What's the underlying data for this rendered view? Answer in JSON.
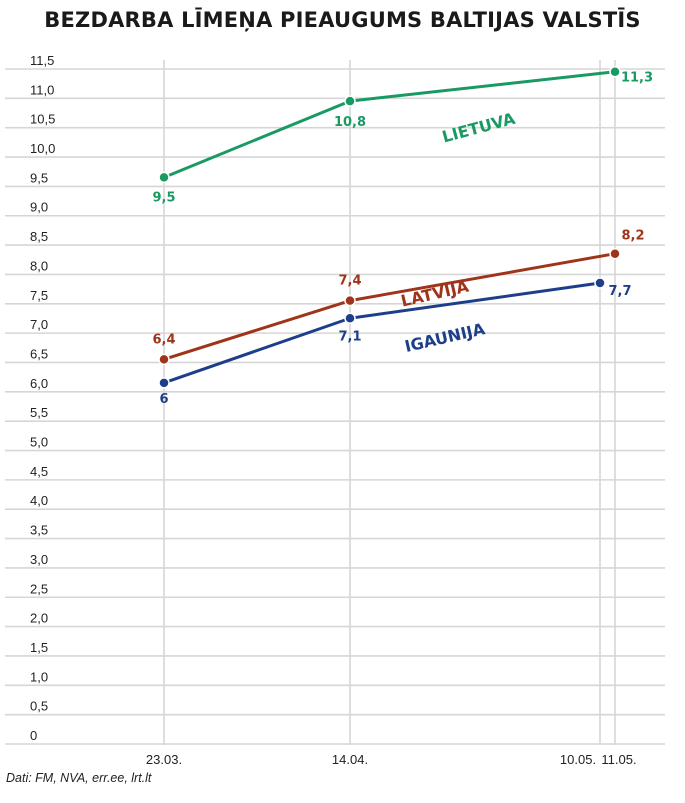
{
  "title": "BEZDARBA LĪMEŅA PIEAUGUMS BALTIJAS VALSTĪS",
  "source": "Dati: FM, NVA, err.ee, lrt.lt",
  "chart_data": {
    "type": "line",
    "title": "BEZDARBA LĪMEŅA PIEAUGUMS BALTIJAS VALSTĪS",
    "xlabel": "",
    "ylabel": "",
    "ylim": [
      0,
      11.5
    ],
    "yticks": [
      "0",
      "0,5",
      "1,0",
      "1,5",
      "2,0",
      "2,5",
      "3,0",
      "3,5",
      "4,0",
      "4,5",
      "5,0",
      "5,5",
      "6,0",
      "6,5",
      "7,0",
      "7,5",
      "8,0",
      "8,5",
      "9,0",
      "9,5",
      "10,0",
      "10,5",
      "11,0",
      "11,5"
    ],
    "ytick_values": [
      0,
      0.5,
      1,
      1.5,
      2,
      2.5,
      3,
      3.5,
      4,
      4.5,
      5,
      5.5,
      6,
      6.5,
      7,
      7.5,
      8,
      8.5,
      9,
      9.5,
      10,
      10.5,
      11,
      11.5
    ],
    "x_categories": [
      "23.03.",
      "14.04.",
      "10.05.",
      "11.05."
    ],
    "grid": "vertical lines at dates, horizontal lines at ticks",
    "series": [
      {
        "name": "LIETUVA",
        "color": "#1a9a63",
        "x": [
          "23.03.",
          "14.04.",
          "11.05."
        ],
        "values": [
          9.5,
          10.8,
          11.3
        ],
        "labels": [
          "9,5",
          "10,8",
          "11,3"
        ]
      },
      {
        "name": "LATVIJA",
        "color": "#a0341a",
        "x": [
          "23.03.",
          "14.04.",
          "11.05."
        ],
        "values": [
          6.4,
          7.4,
          8.2
        ],
        "labels": [
          "6,4",
          "7,4",
          "8,2"
        ]
      },
      {
        "name": "IGAUNIJA",
        "color": "#1d3f8a",
        "x": [
          "23.03.",
          "14.04.",
          "10.05."
        ],
        "values": [
          6,
          7.1,
          7.7
        ],
        "labels": [
          "6",
          "7,1",
          "7,7"
        ]
      }
    ]
  }
}
